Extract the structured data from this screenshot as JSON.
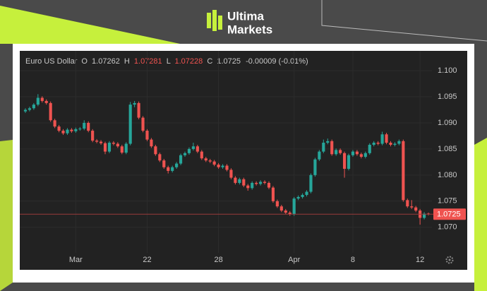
{
  "logo": {
    "line1": "Ultima",
    "line2": "Markets"
  },
  "chart_data": {
    "type": "candlestick",
    "title": "Euro US Dollar",
    "ohlc_labels": [
      "O",
      "H",
      "L",
      "C"
    ],
    "change": "-0.00009 (-0.01%)",
    "categories": [
      null,
      null,
      null,
      null,
      null,
      null,
      null,
      null,
      null,
      null,
      null,
      null,
      "Mar",
      null,
      null,
      null,
      null,
      null,
      null,
      null,
      null,
      null,
      null,
      null,
      null,
      null,
      null,
      null,
      null,
      "22",
      null,
      null,
      null,
      null,
      null,
      null,
      null,
      null,
      null,
      null,
      null,
      null,
      null,
      null,
      null,
      null,
      "28",
      null,
      null,
      null,
      null,
      null,
      null,
      null,
      null,
      null,
      null,
      null,
      null,
      null,
      null,
      null,
      null,
      null,
      "Apr",
      null,
      null,
      null,
      null,
      null,
      null,
      null,
      null,
      null,
      null,
      null,
      null,
      null,
      "8",
      null,
      null,
      null,
      null,
      null,
      null,
      null,
      null,
      null,
      null,
      null,
      null,
      null,
      null,
      null,
      "12",
      null,
      null
    ],
    "open": [
      1.0922,
      1.0925,
      1.0928,
      1.0935,
      1.0948,
      1.0942,
      1.0938,
      1.0905,
      1.0893,
      1.0885,
      1.088,
      1.0887,
      1.0884,
      1.0888,
      1.0889,
      1.09,
      1.0885,
      1.0866,
      1.0864,
      1.0861,
      1.0845,
      1.0862,
      1.086,
      1.0855,
      1.0843,
      1.086,
      1.0935,
      1.0938,
      1.091,
      1.0885,
      1.0868,
      1.0855,
      1.084,
      1.0828,
      1.0815,
      1.0808,
      1.0815,
      1.0822,
      1.0838,
      1.0842,
      1.085,
      1.0855,
      1.0845,
      1.0832,
      1.0828,
      1.0826,
      1.082,
      1.0815,
      1.0818,
      1.081,
      1.0795,
      1.0785,
      1.0792,
      1.078,
      1.0775,
      1.0785,
      1.0783,
      1.0787,
      1.0785,
      1.0776,
      1.075,
      1.074,
      1.0732,
      1.0728,
      1.0725,
      1.0755,
      1.0758,
      1.0762,
      1.0768,
      1.08,
      1.083,
      1.0845,
      1.0862,
      1.0865,
      1.084,
      1.0848,
      1.0842,
      1.0812,
      1.0838,
      1.0845,
      1.084,
      1.0835,
      1.0842,
      1.0858,
      1.0862,
      1.086,
      1.0878,
      1.0862,
      1.0858,
      1.086,
      1.0865,
      1.0752,
      1.074,
      1.0738,
      1.0732,
      1.0718,
      1.07262
    ],
    "high": [
      1.0928,
      1.0931,
      1.0938,
      1.0955,
      1.0951,
      1.0945,
      1.0941,
      1.0908,
      1.0896,
      1.0888,
      1.089,
      1.089,
      1.0891,
      1.0892,
      1.0905,
      1.0903,
      1.0888,
      1.0869,
      1.0867,
      1.0864,
      1.0865,
      1.0865,
      1.0863,
      1.0858,
      1.0863,
      1.094,
      1.0942,
      1.0941,
      1.0913,
      1.0888,
      1.0871,
      1.0858,
      1.0843,
      1.0831,
      1.0818,
      1.0818,
      1.0825,
      1.0841,
      1.0845,
      1.0853,
      1.0862,
      1.0858,
      1.0848,
      1.0835,
      1.0831,
      1.0829,
      1.0823,
      1.0821,
      1.0821,
      1.0813,
      1.0798,
      1.0795,
      1.0795,
      1.0783,
      1.0788,
      1.0788,
      1.079,
      1.079,
      1.0788,
      1.0779,
      1.0753,
      1.0743,
      1.0735,
      1.0731,
      1.0758,
      1.0761,
      1.0765,
      1.0771,
      1.0803,
      1.0833,
      1.0848,
      1.0868,
      1.087,
      1.0868,
      1.0851,
      1.0851,
      1.0845,
      1.0841,
      1.0848,
      1.0848,
      1.0843,
      1.0845,
      1.0861,
      1.0865,
      1.0865,
      1.0883,
      1.0881,
      1.0865,
      1.0863,
      1.0868,
      1.0868,
      1.0755,
      1.0752,
      1.0741,
      1.0735,
      1.0729,
      1.07281
    ],
    "low": [
      1.0919,
      1.0922,
      1.0925,
      1.0932,
      1.0939,
      1.0935,
      1.0902,
      1.089,
      1.0882,
      1.0877,
      1.0877,
      1.0881,
      1.0881,
      1.0885,
      1.0886,
      1.0882,
      1.0863,
      1.0861,
      1.0858,
      1.084,
      1.0842,
      1.0857,
      1.0852,
      1.084,
      1.084,
      1.0857,
      1.093,
      1.0907,
      1.0882,
      1.0865,
      1.0852,
      1.0837,
      1.0825,
      1.0812,
      1.0803,
      1.0805,
      1.0812,
      1.0819,
      1.0835,
      1.0839,
      1.0847,
      1.0842,
      1.0829,
      1.0825,
      1.0823,
      1.0817,
      1.0812,
      1.0812,
      1.0807,
      1.0792,
      1.0782,
      1.0782,
      1.0777,
      1.077,
      1.0772,
      1.078,
      1.078,
      1.0782,
      1.0773,
      1.0747,
      1.0737,
      1.0729,
      1.0725,
      1.0722,
      1.0722,
      1.0752,
      1.0755,
      1.0759,
      1.0765,
      1.0797,
      1.0827,
      1.0842,
      1.0859,
      1.0837,
      1.0837,
      1.0839,
      1.0795,
      1.0809,
      1.0835,
      1.0837,
      1.0832,
      1.0832,
      1.0839,
      1.0855,
      1.0857,
      1.0857,
      1.0859,
      1.0855,
      1.0855,
      1.0857,
      1.0749,
      1.0737,
      1.0735,
      1.0729,
      1.0705,
      1.0715,
      1.07228
    ],
    "close": [
      1.0925,
      1.0928,
      1.0935,
      1.0948,
      1.0942,
      1.0938,
      1.0905,
      1.0893,
      1.0885,
      1.088,
      1.0887,
      1.0884,
      1.0888,
      1.0889,
      1.09,
      1.0885,
      1.0866,
      1.0864,
      1.0861,
      1.0845,
      1.0862,
      1.086,
      1.0855,
      1.0843,
      1.086,
      1.0935,
      1.0938,
      1.091,
      1.0885,
      1.0868,
      1.0855,
      1.084,
      1.0828,
      1.0815,
      1.0808,
      1.0815,
      1.0822,
      1.0838,
      1.0842,
      1.085,
      1.0855,
      1.0845,
      1.0832,
      1.0828,
      1.0826,
      1.082,
      1.0815,
      1.0818,
      1.081,
      1.0795,
      1.0785,
      1.0792,
      1.078,
      1.0775,
      1.0785,
      1.0783,
      1.0787,
      1.0785,
      1.0776,
      1.075,
      1.074,
      1.0732,
      1.0728,
      1.0725,
      1.0755,
      1.0758,
      1.0762,
      1.0768,
      1.08,
      1.083,
      1.0845,
      1.0862,
      1.0865,
      1.084,
      1.0848,
      1.0842,
      1.0812,
      1.0838,
      1.0845,
      1.084,
      1.0835,
      1.0842,
      1.0858,
      1.0862,
      1.086,
      1.0878,
      1.0862,
      1.0858,
      1.086,
      1.0865,
      1.0752,
      1.074,
      1.0738,
      1.0732,
      1.0718,
      1.0726,
      1.0725
    ],
    "up_color": "#26a69a",
    "down_color": "#ef5350",
    "ylim": [
      1.0655,
      1.1038
    ],
    "yticks": [
      {
        "value": 1.07,
        "label": "1.070"
      },
      1.075,
      {
        "value": 1.08,
        "label": "1.080"
      },
      1.085,
      {
        "value": 1.09,
        "label": "1.090"
      },
      1.095,
      {
        "value": 1.1,
        "label": "1.100"
      }
    ],
    "grid": true
  }
}
